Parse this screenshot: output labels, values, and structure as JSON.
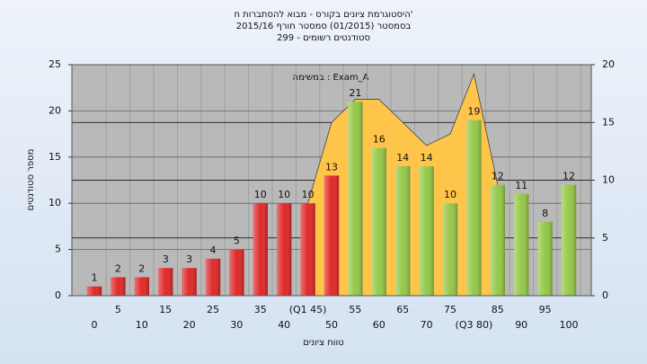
{
  "chart_data": {
    "type": "bar",
    "title": "היסטוגרמת ציונים בקורס - מבוא להסתברות ח'",
    "subtitle": "בסמסטר  (01/2015)  סמסטר חורף  2015/16",
    "subtitle2": "סטודנטים רשומים - 299",
    "annotation": "במשימה : Exam_A",
    "ylabel": "מספר סטודנטים",
    "xlabel": "טווח ציונים",
    "categories": [
      "0",
      "5",
      "10",
      "15",
      "20",
      "25",
      "30",
      "35",
      "40",
      "(Q1 45)",
      "50",
      "55",
      "60",
      "65",
      "70",
      "75",
      "(Q3 80)",
      "85",
      "90",
      "95",
      "100"
    ],
    "values": [
      1,
      2,
      2,
      3,
      3,
      4,
      5,
      10,
      10,
      10,
      13,
      21,
      16,
      14,
      14,
      10,
      19,
      12,
      11,
      8,
      12
    ],
    "colors": [
      "#e02828",
      "#e02828",
      "#e02828",
      "#e02828",
      "#e02828",
      "#e02828",
      "#e02828",
      "#e02828",
      "#e02828",
      "#e02828",
      "#e02828",
      "#94c848",
      "#94c848",
      "#94c848",
      "#94c848",
      "#94c848",
      "#94c848",
      "#94c848",
      "#94c848",
      "#94c848",
      "#94c848"
    ],
    "area": {
      "axis": "y2",
      "color": "#ffc44a",
      "values": [
        null,
        null,
        null,
        null,
        null,
        null,
        null,
        null,
        null,
        8,
        15,
        17,
        17,
        15,
        13,
        14,
        19.2,
        9.6,
        null,
        null,
        null
      ]
    },
    "ylim": [
      0,
      25
    ],
    "yticks": [
      0,
      5,
      10,
      15,
      20,
      25
    ],
    "y2lim": [
      0,
      20
    ],
    "y2ticks": [
      0,
      5,
      10,
      15,
      20
    ],
    "grid": true
  }
}
